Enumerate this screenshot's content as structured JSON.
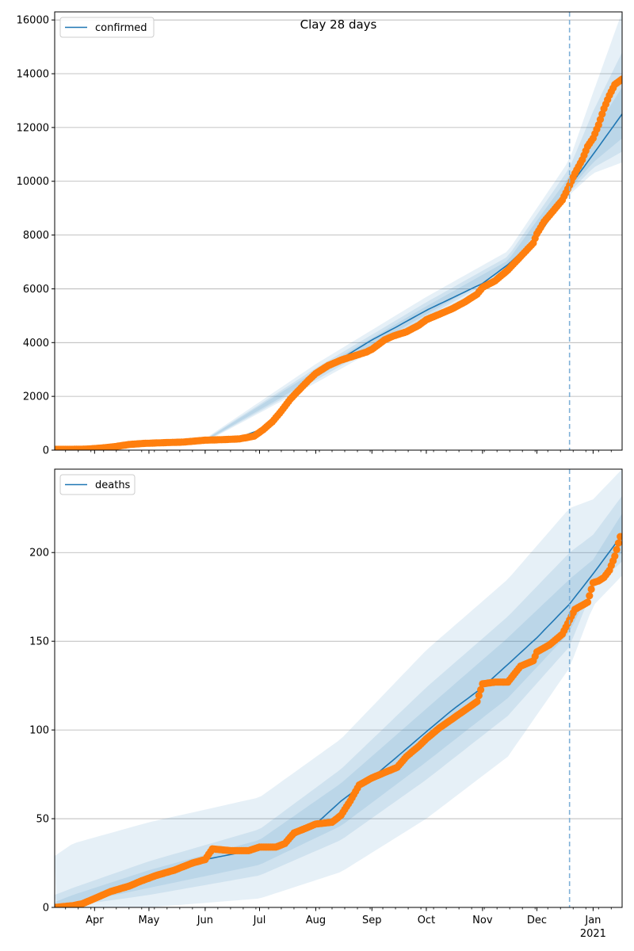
{
  "chart_data": [
    {
      "type": "line",
      "title": "Clay 28 days",
      "legend": {
        "label": "confirmed",
        "placement": "top-left"
      },
      "ylim": [
        0,
        16300
      ],
      "yticks": [
        0,
        2000,
        4000,
        6000,
        8000,
        10000,
        12000,
        14000,
        16000
      ],
      "grid": "y",
      "forecast_start": "2020-12-19",
      "colors": {
        "line": "#1f77b4",
        "observed": "#ff7f0e",
        "band": "#1f77b4",
        "vline": "#7fb1d8"
      },
      "model_line": {
        "x": [
          "2020-03-10",
          "2020-04-01",
          "2020-05-01",
          "2020-06-01",
          "2020-06-20",
          "2020-07-01",
          "2020-07-10",
          "2020-07-20",
          "2020-08-01",
          "2020-08-15",
          "2020-09-01",
          "2020-09-15",
          "2020-10-01",
          "2020-10-15",
          "2020-11-01",
          "2020-11-15",
          "2020-12-01",
          "2020-12-10",
          "2020-12-19",
          "2021-01-01",
          "2021-01-17"
        ],
        "y": [
          20,
          60,
          260,
          360,
          480,
          750,
          1200,
          2000,
          2800,
          3400,
          4100,
          4600,
          5200,
          5650,
          6200,
          6900,
          7900,
          8800,
          9800,
          11000,
          12500
        ]
      },
      "bands": [
        {
          "x": [
            "2020-03-10",
            "2020-06-01",
            "2020-08-01",
            "2020-10-01",
            "2020-11-15",
            "2020-12-19",
            "2021-01-01",
            "2021-01-17"
          ],
          "lower": [
            0,
            300,
            2500,
            4800,
            6500,
            9500,
            10300,
            10700
          ],
          "upper": [
            60,
            430,
            3200,
            5700,
            7400,
            10800,
            13300,
            16300
          ]
        },
        {
          "x": [
            "2020-03-10",
            "2020-06-01",
            "2020-08-01",
            "2020-10-01",
            "2020-11-15",
            "2020-12-19",
            "2021-01-01",
            "2021-01-17"
          ],
          "lower": [
            5,
            320,
            2600,
            4950,
            6650,
            9600,
            10500,
            11100
          ],
          "upper": [
            45,
            400,
            3050,
            5500,
            7200,
            10500,
            12600,
            14800
          ]
        },
        {
          "x": [
            "2020-03-10",
            "2020-06-01",
            "2020-08-01",
            "2020-10-01",
            "2020-11-15",
            "2020-12-19",
            "2021-01-01",
            "2021-01-17"
          ],
          "lower": [
            10,
            335,
            2700,
            5050,
            6750,
            9700,
            10700,
            11600
          ],
          "upper": [
            35,
            385,
            2950,
            5350,
            7050,
            10200,
            11800,
            13500
          ]
        }
      ],
      "observed": {
        "x": [
          "2020-03-10",
          "2020-03-20",
          "2020-03-28",
          "2020-04-05",
          "2020-04-12",
          "2020-04-20",
          "2020-04-28",
          "2020-05-10",
          "2020-05-20",
          "2020-06-01",
          "2020-06-10",
          "2020-06-20",
          "2020-06-28",
          "2020-07-03",
          "2020-07-08",
          "2020-07-13",
          "2020-07-18",
          "2020-07-23",
          "2020-07-28",
          "2020-08-01",
          "2020-08-08",
          "2020-08-15",
          "2020-08-22",
          "2020-08-29",
          "2020-09-01",
          "2020-09-08",
          "2020-09-13",
          "2020-09-20",
          "2020-09-27",
          "2020-10-01",
          "2020-10-08",
          "2020-10-15",
          "2020-10-22",
          "2020-10-29",
          "2020-11-01",
          "2020-11-08",
          "2020-11-15",
          "2020-11-22",
          "2020-11-29",
          "2020-12-01",
          "2020-12-05",
          "2020-12-10",
          "2020-12-15",
          "2020-12-19",
          "2020-12-22",
          "2020-12-26",
          "2020-12-29",
          "2021-01-01",
          "2021-01-04",
          "2021-01-07",
          "2021-01-10",
          "2021-01-13",
          "2021-01-17"
        ],
        "y": [
          30,
          30,
          40,
          80,
          130,
          210,
          250,
          280,
          300,
          370,
          390,
          420,
          520,
          760,
          1050,
          1450,
          1900,
          2250,
          2600,
          2850,
          3150,
          3350,
          3500,
          3650,
          3750,
          4100,
          4250,
          4400,
          4650,
          4850,
          5050,
          5250,
          5500,
          5800,
          6050,
          6300,
          6700,
          7200,
          7700,
          8050,
          8500,
          8900,
          9300,
          9850,
          10300,
          10800,
          11300,
          11600,
          12100,
          12700,
          13200,
          13600,
          13800
        ]
      }
    },
    {
      "type": "line",
      "title": "",
      "legend": {
        "label": "deaths",
        "placement": "top-left"
      },
      "ylim": [
        0,
        247
      ],
      "yticks": [
        0,
        50,
        100,
        150,
        200
      ],
      "grid": "y",
      "forecast_start": "2020-12-19",
      "colors": {
        "line": "#1f77b4",
        "observed": "#ff7f0e",
        "band": "#1f77b4",
        "vline": "#7fb1d8"
      },
      "model_line": {
        "x": [
          "2020-03-10",
          "2020-04-01",
          "2020-05-01",
          "2020-06-01",
          "2020-07-01",
          "2020-07-15",
          "2020-08-01",
          "2020-08-15",
          "2020-09-01",
          "2020-09-15",
          "2020-10-01",
          "2020-10-15",
          "2020-11-01",
          "2020-11-15",
          "2020-12-01",
          "2020-12-19",
          "2021-01-01",
          "2021-01-17"
        ],
        "y": [
          0,
          5,
          17,
          27,
          33,
          37,
          47,
          60,
          73,
          85,
          99,
          111,
          124,
          137,
          152,
          171,
          188,
          210
        ]
      },
      "bands": [
        {
          "x": [
            "2020-03-10",
            "2020-03-20",
            "2020-05-01",
            "2020-07-01",
            "2020-08-15",
            "2020-10-01",
            "2020-11-15",
            "2020-12-19",
            "2021-01-01",
            "2021-01-17"
          ],
          "lower": [
            0,
            0,
            0,
            5,
            20,
            50,
            85,
            135,
            170,
            187
          ],
          "upper": [
            29,
            36,
            48,
            62,
            95,
            145,
            185,
            225,
            230,
            247
          ]
        },
        {
          "x": [
            "2020-03-10",
            "2020-03-20",
            "2020-05-01",
            "2020-07-01",
            "2020-08-15",
            "2020-10-01",
            "2020-11-15",
            "2020-12-19",
            "2021-01-01",
            "2021-01-17"
          ],
          "lower": [
            0,
            1,
            7,
            18,
            38,
            72,
            108,
            147,
            180,
            195
          ],
          "upper": [
            7,
            11,
            26,
            44,
            78,
            124,
            164,
            200,
            210,
            232
          ]
        },
        {
          "x": [
            "2020-03-10",
            "2020-03-20",
            "2020-05-01",
            "2020-07-01",
            "2020-08-15",
            "2020-10-01",
            "2020-11-15",
            "2020-12-19",
            "2021-01-01",
            "2021-01-17"
          ],
          "lower": [
            0,
            2,
            11,
            24,
            46,
            82,
            118,
            155,
            183,
            200
          ],
          "upper": [
            3,
            7,
            21,
            38,
            70,
            112,
            152,
            185,
            196,
            222
          ]
        }
      ],
      "observed": {
        "x": [
          "2020-03-10",
          "2020-03-20",
          "2020-03-25",
          "2020-04-01",
          "2020-04-10",
          "2020-04-20",
          "2020-04-27",
          "2020-05-05",
          "2020-05-15",
          "2020-05-25",
          "2020-06-01",
          "2020-06-05",
          "2020-06-15",
          "2020-06-25",
          "2020-07-01",
          "2020-07-10",
          "2020-07-15",
          "2020-07-20",
          "2020-07-25",
          "2020-08-01",
          "2020-08-10",
          "2020-08-15",
          "2020-08-20",
          "2020-08-25",
          "2020-09-01",
          "2020-09-08",
          "2020-09-15",
          "2020-09-20",
          "2020-09-27",
          "2020-10-01",
          "2020-10-08",
          "2020-10-15",
          "2020-10-22",
          "2020-10-29",
          "2020-11-01",
          "2020-11-08",
          "2020-11-15",
          "2020-11-22",
          "2020-11-29",
          "2020-12-01",
          "2020-12-08",
          "2020-12-15",
          "2020-12-19",
          "2020-12-22",
          "2020-12-29",
          "2021-01-01",
          "2021-01-04",
          "2021-01-07",
          "2021-01-10",
          "2021-01-13",
          "2021-01-16"
        ],
        "y": [
          0,
          1,
          2,
          5,
          9,
          12,
          15,
          18,
          21,
          25,
          27,
          33,
          32,
          32,
          34,
          34,
          36,
          42,
          44,
          47,
          48,
          52,
          60,
          69,
          73,
          76,
          79,
          85,
          91,
          95,
          101,
          106,
          111,
          116,
          126,
          127,
          127,
          136,
          139,
          144,
          148,
          154,
          162,
          168,
          172,
          183,
          184,
          186,
          190,
          198,
          209
        ]
      },
      "x_axis": {
        "start": "2020-03-10",
        "end": "2021-01-17",
        "major_ticks": [
          {
            "date": "2020-04-01",
            "label": "Apr"
          },
          {
            "date": "2020-05-01",
            "label": "May"
          },
          {
            "date": "2020-06-01",
            "label": "Jun"
          },
          {
            "date": "2020-07-01",
            "label": "Jul"
          },
          {
            "date": "2020-08-01",
            "label": "Aug"
          },
          {
            "date": "2020-09-01",
            "label": "Sep"
          },
          {
            "date": "2020-10-01",
            "label": "Oct"
          },
          {
            "date": "2020-11-01",
            "label": "Nov"
          },
          {
            "date": "2020-12-01",
            "label": "Dec"
          },
          {
            "date": "2021-01-01",
            "label": "Jan"
          }
        ],
        "year_label": {
          "date": "2021-01-01",
          "label": "2021"
        }
      }
    }
  ]
}
